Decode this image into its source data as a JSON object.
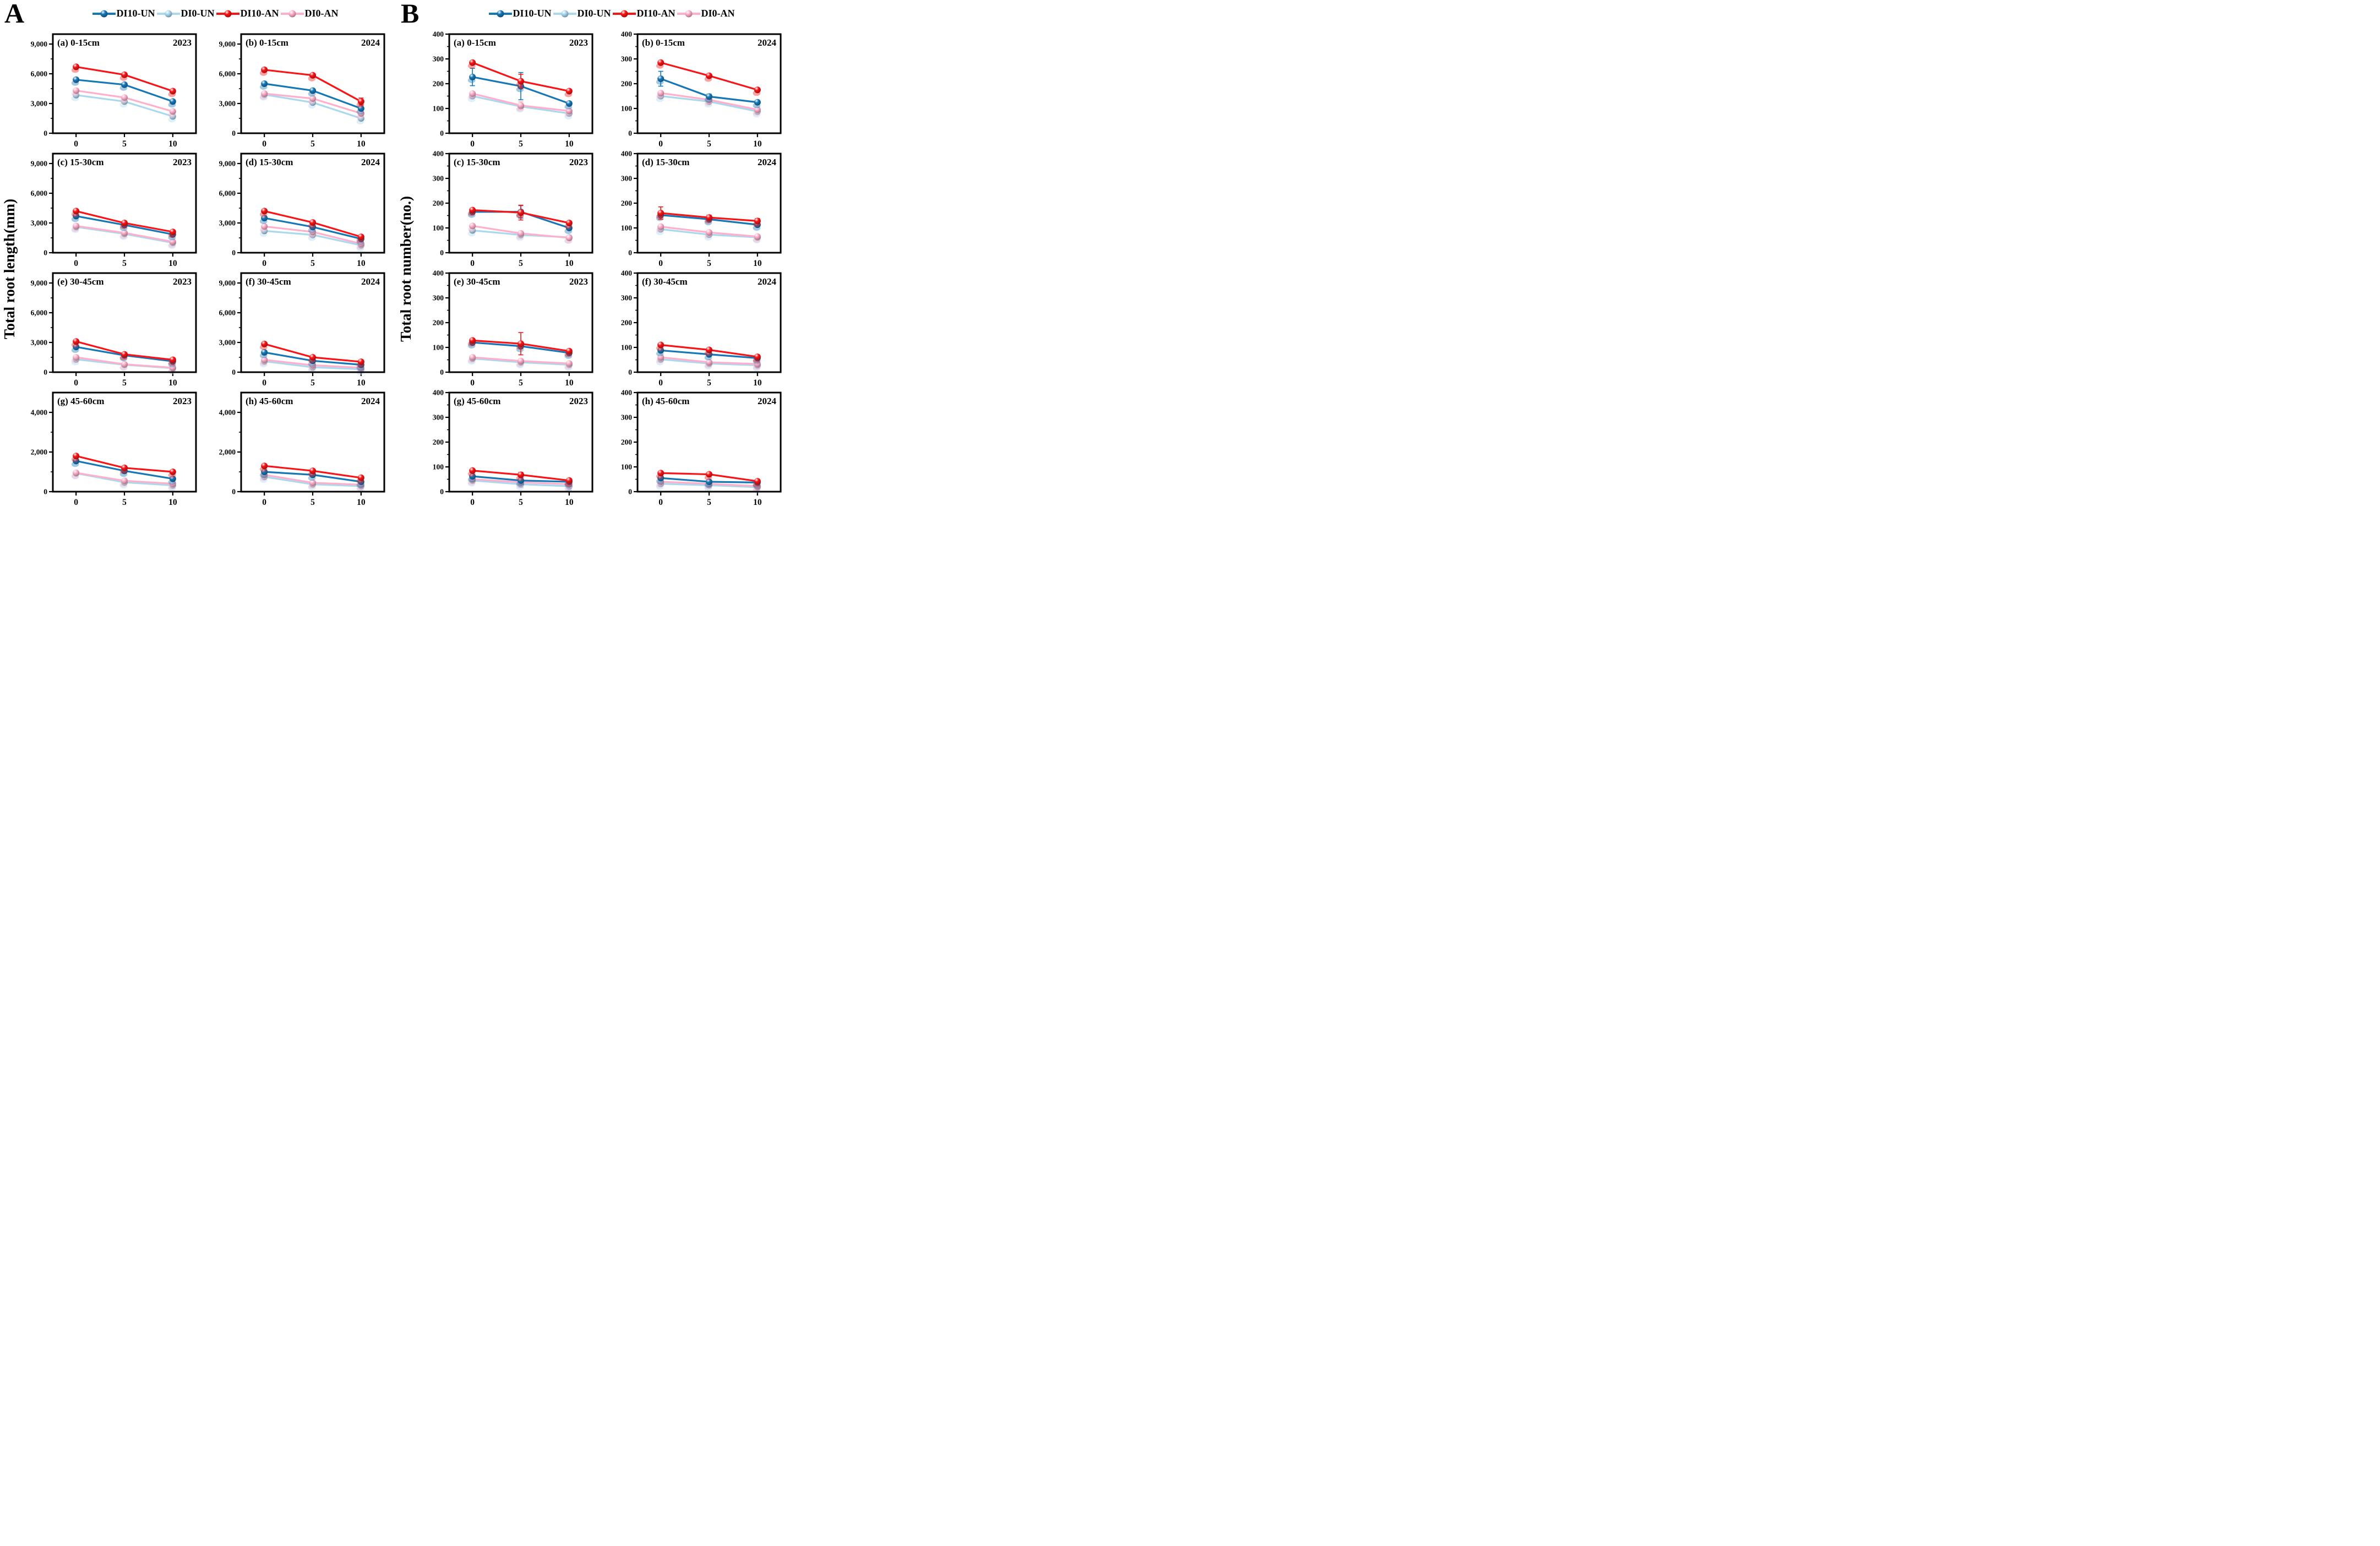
{
  "x_axis": {
    "tick_labels": [
      "0",
      "5",
      "10"
    ]
  },
  "chart_data": [
    {
      "panel": "A",
      "type": "line",
      "ylabel": "Total root length(mm)",
      "x": [
        0,
        5,
        10
      ],
      "legend_position": "top",
      "grid": "off",
      "series_names": [
        "DI10-UN",
        "DI0-UN",
        "DI10-AN",
        "DI0-AN"
      ],
      "series_colors": [
        "#1677b6",
        "#a9d8ef",
        "#f81416",
        "#ffafca"
      ],
      "subplots": [
        {
          "label": "(a)",
          "depth": "0-15cm",
          "year": "2023",
          "ylim": [
            0,
            10000
          ],
          "yticks": [
            0,
            3000,
            6000,
            9000
          ],
          "series": {
            "DI10-UN": [
              5400,
              4900,
              3200
            ],
            "DI0-UN": [
              3850,
              3200,
              1700
            ],
            "DI10-AN": [
              6700,
              5900,
              4250
            ],
            "DI0-AN": [
              4300,
              3600,
              2200
            ]
          }
        },
        {
          "label": "(b)",
          "depth": "0-15cm",
          "year": "2024",
          "ylim": [
            0,
            10000
          ],
          "yticks": [
            0,
            3000,
            6000,
            9000
          ],
          "series": {
            "DI10-UN": [
              5000,
              4300,
              2500
            ],
            "DI0-UN": [
              3900,
              3100,
              1500
            ],
            "DI10-AN": [
              6400,
              5850,
              3200
            ],
            "DI0-AN": [
              4000,
              3500,
              2000
            ]
          },
          "err": {
            "DI10-AN": [
              0,
              0,
              350
            ]
          }
        },
        {
          "label": "(c)",
          "depth": "15-30cm",
          "year": "2023",
          "ylim": [
            0,
            10000
          ],
          "yticks": [
            0,
            3000,
            6000,
            9000
          ],
          "series": {
            "DI10-UN": [
              3700,
              2800,
              1850
            ],
            "DI0-UN": [
              2600,
              1900,
              1000
            ],
            "DI10-AN": [
              4200,
              3000,
              2100
            ],
            "DI0-AN": [
              2700,
              2000,
              1100
            ]
          }
        },
        {
          "label": "(d)",
          "depth": "15-30cm",
          "year": "2024",
          "ylim": [
            0,
            10000
          ],
          "yticks": [
            0,
            3000,
            6000,
            9000
          ],
          "series": {
            "DI10-UN": [
              3500,
              2600,
              1400
            ],
            "DI0-UN": [
              2200,
              1800,
              750
            ],
            "DI10-AN": [
              4200,
              3050,
              1600
            ],
            "DI0-AN": [
              2650,
              2100,
              900
            ]
          }
        },
        {
          "label": "(e)",
          "depth": "30-45cm",
          "year": "2023",
          "ylim": [
            0,
            10000
          ],
          "yticks": [
            0,
            3000,
            6000,
            9000
          ],
          "series": {
            "DI10-UN": [
              2550,
              1700,
              1100
            ],
            "DI0-UN": [
              1300,
              750,
              400
            ],
            "DI10-AN": [
              3100,
              1800,
              1250
            ],
            "DI0-AN": [
              1500,
              800,
              450
            ]
          }
        },
        {
          "label": "(f)",
          "depth": "30-45cm",
          "year": "2024",
          "ylim": [
            0,
            10000
          ],
          "yticks": [
            0,
            3000,
            6000,
            9000
          ],
          "series": {
            "DI10-UN": [
              2000,
              1150,
              750
            ],
            "DI0-UN": [
              1100,
              500,
              300
            ],
            "DI10-AN": [
              2850,
              1500,
              1050
            ],
            "DI0-AN": [
              1250,
              700,
              450
            ]
          }
        },
        {
          "label": "(g)",
          "depth": "45-60cm",
          "year": "2023",
          "ylim": [
            0,
            5000
          ],
          "yticks": [
            0,
            2000,
            4000
          ],
          "series": {
            "DI10-UN": [
              1550,
              1050,
              650
            ],
            "DI0-UN": [
              930,
              470,
              320
            ],
            "DI10-AN": [
              1800,
              1200,
              1000
            ],
            "DI0-AN": [
              950,
              550,
              400
            ]
          }
        },
        {
          "label": "(h)",
          "depth": "45-60cm",
          "year": "2024",
          "ylim": [
            0,
            5000
          ],
          "yticks": [
            0,
            2000,
            4000
          ],
          "series": {
            "DI10-UN": [
              1000,
              850,
              500
            ],
            "DI0-UN": [
              750,
              370,
              280
            ],
            "DI10-AN": [
              1300,
              1050,
              700
            ],
            "DI0-AN": [
              850,
              450,
              350
            ]
          }
        }
      ]
    },
    {
      "panel": "B",
      "type": "line",
      "ylabel": "Total root number(no.)",
      "x": [
        0,
        5,
        10
      ],
      "legend_position": "top",
      "grid": "off",
      "series_names": [
        "DI10-UN",
        "DI0-UN",
        "DI10-AN",
        "DI0-AN"
      ],
      "series_colors": [
        "#1677b6",
        "#a9d8ef",
        "#f81416",
        "#ffafca"
      ],
      "subplots": [
        {
          "label": "(a)",
          "depth": "0-15cm",
          "year": "2023",
          "ylim": [
            0,
            400
          ],
          "yticks": [
            0,
            100,
            200,
            300,
            400
          ],
          "series": {
            "DI10-UN": [
              227,
              190,
              120
            ],
            "DI0-UN": [
              150,
              108,
              80
            ],
            "DI10-AN": [
              285,
              210,
              170
            ],
            "DI0-AN": [
              160,
              112,
              90
            ]
          },
          "err": {
            "DI10-UN": [
              35,
              55,
              0
            ],
            "DI10-AN": [
              0,
              28,
              0
            ],
            "DI0-AN": [
              0,
              15,
              0
            ]
          }
        },
        {
          "label": "(b)",
          "depth": "0-15cm",
          "year": "2024",
          "ylim": [
            0,
            400
          ],
          "yticks": [
            0,
            100,
            200,
            300,
            400
          ],
          "series": {
            "DI10-UN": [
              220,
              148,
              125
            ],
            "DI0-UN": [
              150,
              128,
              88
            ],
            "DI10-AN": [
              285,
              232,
              175
            ],
            "DI0-AN": [
              162,
              135,
              95
            ]
          },
          "err": {
            "DI10-UN": [
              30,
              10,
              0
            ],
            "DI0-AN": [
              0,
              12,
              10
            ]
          }
        },
        {
          "label": "(c)",
          "depth": "15-30cm",
          "year": "2023",
          "ylim": [
            0,
            400
          ],
          "yticks": [
            0,
            100,
            200,
            300,
            400
          ],
          "series": {
            "DI10-UN": [
              165,
              165,
              100
            ],
            "DI0-UN": [
              90,
              72,
              62
            ],
            "DI10-AN": [
              172,
              162,
              120
            ],
            "DI0-AN": [
              108,
              78,
              60
            ]
          },
          "err": {
            "DI10-UN": [
              0,
              25,
              0
            ],
            "DI10-AN": [
              0,
              30,
              0
            ]
          }
        },
        {
          "label": "(d)",
          "depth": "15-30cm",
          "year": "2024",
          "ylim": [
            0,
            400
          ],
          "yticks": [
            0,
            100,
            200,
            300,
            400
          ],
          "series": {
            "DI10-UN": [
              152,
              135,
              113
            ],
            "DI0-UN": [
              95,
              73,
              62
            ],
            "DI10-AN": [
              160,
              142,
              128
            ],
            "DI0-AN": [
              105,
              82,
              65
            ]
          },
          "err": {
            "DI10-AN": [
              25,
              10,
              10
            ]
          }
        },
        {
          "label": "(e)",
          "depth": "30-45cm",
          "year": "2023",
          "ylim": [
            0,
            400
          ],
          "yticks": [
            0,
            100,
            200,
            300,
            400
          ],
          "series": {
            "DI10-UN": [
              120,
              105,
              78
            ],
            "DI0-UN": [
              55,
              40,
              30
            ],
            "DI10-AN": [
              128,
              115,
              85
            ],
            "DI0-AN": [
              60,
              45,
              35
            ]
          },
          "err": {
            "DI10-AN": [
              0,
              45,
              0
            ]
          }
        },
        {
          "label": "(f)",
          "depth": "30-45cm",
          "year": "2024",
          "ylim": [
            0,
            400
          ],
          "yticks": [
            0,
            100,
            200,
            300,
            400
          ],
          "series": {
            "DI10-UN": [
              88,
              72,
              57
            ],
            "DI0-UN": [
              52,
              35,
              28
            ],
            "DI10-AN": [
              110,
              90,
              62
            ],
            "DI0-AN": [
              60,
              40,
              33
            ]
          }
        },
        {
          "label": "(g)",
          "depth": "45-60cm",
          "year": "2023",
          "ylim": [
            0,
            400
          ],
          "yticks": [
            0,
            100,
            200,
            300,
            400
          ],
          "series": {
            "DI10-UN": [
              62,
              45,
              40
            ],
            "DI0-UN": [
              45,
              30,
              22
            ],
            "DI10-AN": [
              85,
              68,
              45
            ],
            "DI0-AN": [
              50,
              38,
              30
            ]
          },
          "err": {
            "DI0-UN": [
              0,
              12,
              15
            ],
            "DI0-AN": [
              0,
              15,
              12
            ],
            "DI10-AN": [
              0,
              10,
              8
            ]
          }
        },
        {
          "label": "(h)",
          "depth": "45-60cm",
          "year": "2024",
          "ylim": [
            0,
            400
          ],
          "yticks": [
            0,
            100,
            200,
            300,
            400
          ],
          "series": {
            "DI10-UN": [
              55,
              40,
              37
            ],
            "DI0-UN": [
              32,
              26,
              18
            ],
            "DI10-AN": [
              75,
              70,
              42
            ],
            "DI0-AN": [
              40,
              32,
              22
            ]
          },
          "err": {
            "DI0-UN": [
              0,
              10,
              8
            ]
          }
        }
      ]
    }
  ]
}
